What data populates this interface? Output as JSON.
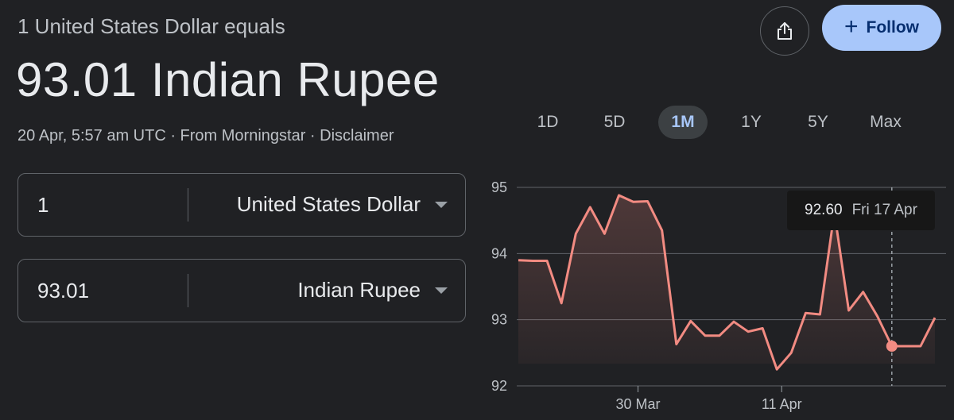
{
  "header": {
    "subtitle": "1 United States Dollar equals",
    "rate_line": "93.01 Indian Rupee",
    "timestamp": "20 Apr, 5:57 am UTC",
    "separator": " · ",
    "source": "From Morningstar",
    "disclaimer": "Disclaimer"
  },
  "actions": {
    "share_icon": "share-icon",
    "follow_label": "Follow",
    "follow_plus": "+"
  },
  "converter": {
    "from_amount": "1",
    "from_currency": "United States Dollar",
    "to_amount": "93.01",
    "to_currency": "Indian Rupee"
  },
  "ranges": {
    "selected": "1M",
    "items": [
      "1D",
      "5D",
      "1M",
      "1Y",
      "5Y",
      "Max"
    ]
  },
  "tooltip": {
    "value": "92.60",
    "date": "Fri 17 Apr"
  },
  "colors": {
    "line": "#f28b82",
    "accent": "#a8c7fa",
    "background": "#202124"
  },
  "chart_data": {
    "type": "area",
    "y_ticks": [
      "95",
      "94",
      "93",
      "92"
    ],
    "ylim": [
      92,
      95
    ],
    "x_ticks": [
      "30 Mar",
      "11 Apr"
    ],
    "grid": true,
    "highlight": {
      "date": "Fri 17 Apr",
      "value": 92.6
    },
    "values": [
      93.9,
      93.89,
      93.89,
      93.25,
      94.3,
      94.7,
      94.3,
      94.88,
      94.78,
      94.79,
      94.35,
      92.63,
      92.98,
      92.76,
      92.76,
      92.97,
      92.82,
      92.87,
      92.25,
      92.5,
      93.1,
      93.08,
      94.62,
      93.14,
      93.42,
      93.05,
      92.6,
      92.6,
      92.6,
      93.03
    ]
  }
}
